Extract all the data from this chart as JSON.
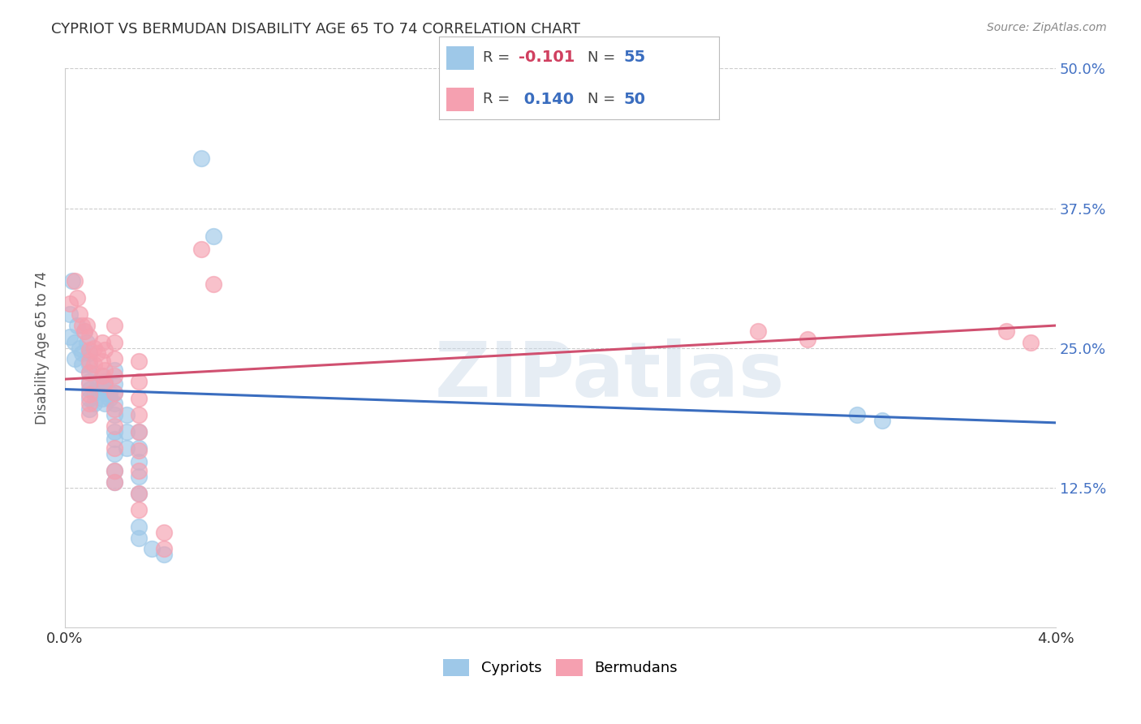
{
  "title": "CYPRIOT VS BERMUDAN DISABILITY AGE 65 TO 74 CORRELATION CHART",
  "source": "Source: ZipAtlas.com",
  "ylabel": "Disability Age 65 to 74",
  "xmin": 0.0,
  "xmax": 0.04,
  "ymin": 0.0,
  "ymax": 0.5,
  "yticks": [
    0.125,
    0.25,
    0.375,
    0.5
  ],
  "ytick_labels": [
    "12.5%",
    "25.0%",
    "37.5%",
    "50.0%"
  ],
  "cypriot_color": "#9ec8e8",
  "bermudan_color": "#f5a0b0",
  "trendline_cypriot_color": "#3a6dbf",
  "trendline_bermudan_color": "#d05070",
  "background_color": "#ffffff",
  "watermark": "ZIPatlas",
  "cypriot_R": -0.101,
  "cypriot_N": 55,
  "bermudan_R": 0.14,
  "bermudan_N": 50,
  "cypriot_trendline": [
    [
      0.0,
      0.213
    ],
    [
      0.04,
      0.183
    ]
  ],
  "bermudan_trendline": [
    [
      0.0,
      0.222
    ],
    [
      0.04,
      0.27
    ]
  ],
  "cypriot_points": [
    [
      0.0002,
      0.28
    ],
    [
      0.0002,
      0.26
    ],
    [
      0.0003,
      0.31
    ],
    [
      0.0004,
      0.255
    ],
    [
      0.0004,
      0.24
    ],
    [
      0.0005,
      0.27
    ],
    [
      0.0006,
      0.25
    ],
    [
      0.0007,
      0.245
    ],
    [
      0.0007,
      0.235
    ],
    [
      0.0008,
      0.265
    ],
    [
      0.0009,
      0.255
    ],
    [
      0.001,
      0.245
    ],
    [
      0.001,
      0.235
    ],
    [
      0.001,
      0.228
    ],
    [
      0.001,
      0.22
    ],
    [
      0.001,
      0.213
    ],
    [
      0.001,
      0.205
    ],
    [
      0.001,
      0.195
    ],
    [
      0.0012,
      0.21
    ],
    [
      0.0012,
      0.2
    ],
    [
      0.0013,
      0.215
    ],
    [
      0.0015,
      0.225
    ],
    [
      0.0015,
      0.215
    ],
    [
      0.0015,
      0.205
    ],
    [
      0.0016,
      0.22
    ],
    [
      0.0016,
      0.21
    ],
    [
      0.0016,
      0.2
    ],
    [
      0.0018,
      0.21
    ],
    [
      0.0018,
      0.205
    ],
    [
      0.002,
      0.23
    ],
    [
      0.002,
      0.218
    ],
    [
      0.002,
      0.21
    ],
    [
      0.002,
      0.2
    ],
    [
      0.002,
      0.19
    ],
    [
      0.002,
      0.175
    ],
    [
      0.002,
      0.168
    ],
    [
      0.002,
      0.155
    ],
    [
      0.002,
      0.14
    ],
    [
      0.002,
      0.13
    ],
    [
      0.0025,
      0.19
    ],
    [
      0.0025,
      0.175
    ],
    [
      0.0025,
      0.16
    ],
    [
      0.003,
      0.175
    ],
    [
      0.003,
      0.16
    ],
    [
      0.003,
      0.148
    ],
    [
      0.003,
      0.135
    ],
    [
      0.003,
      0.12
    ],
    [
      0.003,
      0.09
    ],
    [
      0.003,
      0.08
    ],
    [
      0.0035,
      0.07
    ],
    [
      0.004,
      0.065
    ],
    [
      0.0055,
      0.42
    ],
    [
      0.006,
      0.35
    ],
    [
      0.032,
      0.19
    ],
    [
      0.033,
      0.185
    ]
  ],
  "bermudan_points": [
    [
      0.0002,
      0.29
    ],
    [
      0.0004,
      0.31
    ],
    [
      0.0005,
      0.295
    ],
    [
      0.0006,
      0.28
    ],
    [
      0.0007,
      0.27
    ],
    [
      0.0008,
      0.265
    ],
    [
      0.0009,
      0.27
    ],
    [
      0.001,
      0.26
    ],
    [
      0.001,
      0.248
    ],
    [
      0.001,
      0.238
    ],
    [
      0.001,
      0.228
    ],
    [
      0.001,
      0.218
    ],
    [
      0.001,
      0.208
    ],
    [
      0.001,
      0.2
    ],
    [
      0.001,
      0.19
    ],
    [
      0.0012,
      0.25
    ],
    [
      0.0012,
      0.235
    ],
    [
      0.0013,
      0.245
    ],
    [
      0.0015,
      0.255
    ],
    [
      0.0015,
      0.238
    ],
    [
      0.0015,
      0.225
    ],
    [
      0.0016,
      0.248
    ],
    [
      0.0016,
      0.23
    ],
    [
      0.0016,
      0.218
    ],
    [
      0.002,
      0.27
    ],
    [
      0.002,
      0.255
    ],
    [
      0.002,
      0.24
    ],
    [
      0.002,
      0.225
    ],
    [
      0.002,
      0.21
    ],
    [
      0.002,
      0.195
    ],
    [
      0.002,
      0.18
    ],
    [
      0.002,
      0.16
    ],
    [
      0.002,
      0.14
    ],
    [
      0.002,
      0.13
    ],
    [
      0.003,
      0.238
    ],
    [
      0.003,
      0.22
    ],
    [
      0.003,
      0.205
    ],
    [
      0.003,
      0.19
    ],
    [
      0.003,
      0.175
    ],
    [
      0.003,
      0.158
    ],
    [
      0.003,
      0.14
    ],
    [
      0.003,
      0.12
    ],
    [
      0.003,
      0.105
    ],
    [
      0.004,
      0.085
    ],
    [
      0.004,
      0.07
    ],
    [
      0.0055,
      0.338
    ],
    [
      0.006,
      0.307
    ],
    [
      0.028,
      0.265
    ],
    [
      0.03,
      0.258
    ],
    [
      0.038,
      0.265
    ],
    [
      0.039,
      0.255
    ]
  ]
}
